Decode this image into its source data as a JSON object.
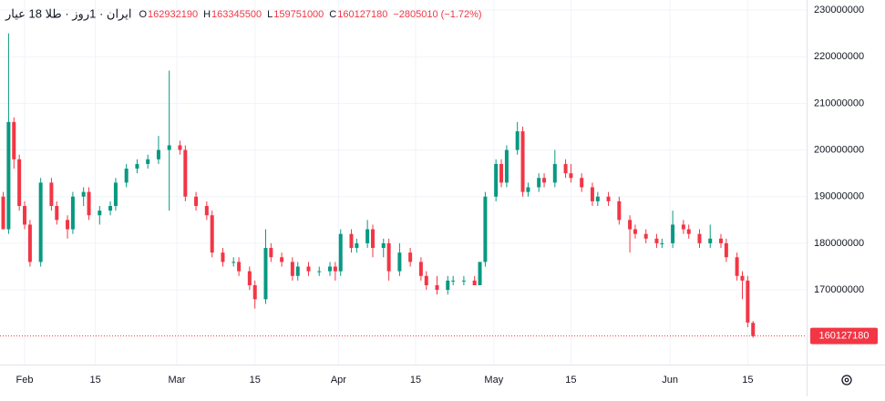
{
  "chart_data": {
    "type": "candlestick",
    "title": "ایران · 1روز · طلا 18 عیار",
    "legend_values": [
      {
        "label": "O",
        "value": 162932190
      },
      {
        "label": "H",
        "value": 163345500
      },
      {
        "label": "L",
        "value": 159751000
      },
      {
        "label": "C",
        "value": 160127180
      }
    ],
    "change": "−2805010 (−1.72%)",
    "up_color": "#089981",
    "down_color": "#f23645",
    "grid": true,
    "x": [
      -4,
      -3,
      -2,
      -1,
      0,
      1,
      3,
      5,
      6,
      8,
      9,
      11,
      12,
      14,
      16,
      17,
      19,
      21,
      23,
      25,
      27,
      29,
      30,
      32,
      34,
      35,
      37,
      39,
      40,
      42,
      43,
      45,
      46,
      48,
      50,
      51,
      53,
      55,
      57,
      58,
      59,
      61,
      62,
      64,
      65,
      67,
      68,
      70,
      72,
      74,
      75,
      77,
      79,
      80,
      82,
      84,
      85,
      86,
      88,
      89,
      90,
      92,
      93,
      94,
      96,
      97,
      99,
      101,
      102,
      104,
      106,
      107,
      109,
      111,
      113,
      114,
      116,
      118,
      119,
      121,
      123,
      124,
      126,
      128,
      130,
      131,
      133,
      134,
      135,
      136
    ],
    "open": [
      190000000.0,
      183000000.0,
      206000000.0,
      198000000.0,
      188000000.0,
      184000000.0,
      176000000.0,
      193000000.0,
      188000000.0,
      185000000.0,
      183000000.0,
      190000000.0,
      191000000.0,
      186000000.0,
      187000000.0,
      188000000.0,
      193000000.0,
      196000000.0,
      197000000.0,
      198000000.0,
      200000000.0,
      201000000.0,
      200000000.0,
      190000000.0,
      188000000.0,
      186000000.0,
      178000000.0,
      176000000.0,
      176000000.0,
      174000000.0,
      171000000.0,
      168000000.0,
      179000000.0,
      177000000.0,
      176000000.0,
      173000000.0,
      175000000.0,
      174000000.0,
      174000000.0,
      175000000.0,
      174000000.0,
      182000000.0,
      179000000.0,
      180000000.0,
      183000000.0,
      179000000.0,
      180000000.0,
      174000000.0,
      178000000.0,
      176000000.0,
      173000000.0,
      171000000.0,
      170000000.0,
      172000000.0,
      172000000.0,
      172000000.0,
      171000000.0,
      176000000.0,
      190000000.0,
      197000000.0,
      193000000.0,
      200000000.0,
      204000000.0,
      191000000.0,
      192000000.0,
      194000000.0,
      193000000.0,
      197000000.0,
      195000000.0,
      194000000.0,
      192000000.0,
      189000000.0,
      190000000.0,
      189000000.0,
      185000000.0,
      183000000.0,
      182000000.0,
      181000000.0,
      180000000.0,
      180000000.0,
      184000000.0,
      183000000.0,
      182000000.0,
      180000000.0,
      181000000.0,
      180000000.0,
      177000000.0,
      173000000.0,
      172000000.0,
      162932190
    ],
    "high": [
      191000000.0,
      225000000.0,
      207000000.0,
      199000000.0,
      189000000.0,
      185000000.0,
      194000000.0,
      194000000.0,
      189000000.0,
      186000000.0,
      191000000.0,
      192000000.0,
      192000000.0,
      188000000.0,
      189000000.0,
      194000000.0,
      197000000.0,
      198000000.0,
      199000000.0,
      203000000.0,
      217000000.0,
      202000000.0,
      201000000.0,
      191000000.0,
      189000000.0,
      187000000.0,
      179000000.0,
      177000000.0,
      177000000.0,
      175000000.0,
      172000000.0,
      183000000.0,
      180000000.0,
      178000000.0,
      177000000.0,
      176000000.0,
      176000000.0,
      175000000.0,
      176000000.0,
      176000000.0,
      183000000.0,
      183000000.0,
      181000000.0,
      185000000.0,
      184000000.0,
      181000000.0,
      181000000.0,
      180000000.0,
      179000000.0,
      177000000.0,
      174000000.0,
      173000000.0,
      173000000.0,
      173000000.0,
      173000000.0,
      173000000.0,
      176000000.0,
      191000000.0,
      198000000.0,
      198000000.0,
      201000000.0,
      206000000.0,
      205000000.0,
      193000000.0,
      195000000.0,
      195000000.0,
      200000000.0,
      198000000.0,
      197000000.0,
      195000000.0,
      193000000.0,
      191000000.0,
      191000000.0,
      190000000.0,
      186000000.0,
      184000000.0,
      183000000.0,
      182000000.0,
      181000000.0,
      187000000.0,
      185000000.0,
      184000000.0,
      183000000.0,
      184000000.0,
      182000000.0,
      181000000.0,
      178000000.0,
      174000000.0,
      173000000.0,
      163345500
    ],
    "low": [
      183000000.0,
      182000000.0,
      196000000.0,
      187000000.0,
      183000000.0,
      175000000.0,
      175000000.0,
      187000000.0,
      184000000.0,
      181000000.0,
      182000000.0,
      188000000.0,
      185000000.0,
      184000000.0,
      186000000.0,
      187000000.0,
      192000000.0,
      195000000.0,
      196000000.0,
      197000000.0,
      187000000.0,
      199000000.0,
      189000000.0,
      187000000.0,
      185000000.0,
      177000000.0,
      175000000.0,
      175000000.0,
      173000000.0,
      170000000.0,
      166000000.0,
      167000000.0,
      176000000.0,
      175000000.0,
      172000000.0,
      172000000.0,
      173000000.0,
      173000000.0,
      173000000.0,
      172000000.0,
      173000000.0,
      178000000.0,
      178000000.0,
      179000000.0,
      177000000.0,
      177000000.0,
      172000000.0,
      173000000.0,
      175000000.0,
      172000000.0,
      170000000.0,
      169000000.0,
      169000000.0,
      171000000.0,
      171000000.0,
      171000000.0,
      171000000.0,
      175000000.0,
      189000000.0,
      192000000.0,
      192000000.0,
      199000000.0,
      190000000.0,
      190000000.0,
      191000000.0,
      192000000.0,
      192000000.0,
      194000000.0,
      193000000.0,
      191000000.0,
      188000000.0,
      188000000.0,
      188000000.0,
      184000000.0,
      178000000.0,
      181000000.0,
      180000000.0,
      179000000.0,
      179000000.0,
      179000000.0,
      182000000.0,
      181000000.0,
      179000000.0,
      179000000.0,
      179000000.0,
      176000000.0,
      172000000.0,
      168000000.0,
      162000000.0,
      159751000
    ],
    "close": [
      183000000.0,
      206000000.0,
      198000000.0,
      188000000.0,
      184000000.0,
      176000000.0,
      193000000.0,
      188000000.0,
      185000000.0,
      183000000.0,
      190000000.0,
      191000000.0,
      186000000.0,
      187000000.0,
      188000000.0,
      193000000.0,
      196000000.0,
      197000000.0,
      198000000.0,
      200000000.0,
      201000000.0,
      200000000.0,
      190000000.0,
      188000000.0,
      186000000.0,
      178000000.0,
      176000000.0,
      176000000.0,
      174000000.0,
      171000000.0,
      168000000.0,
      179000000.0,
      177000000.0,
      176000000.0,
      173000000.0,
      175000000.0,
      174000000.0,
      174000000.0,
      175000000.0,
      174000000.0,
      182000000.0,
      179000000.0,
      180000000.0,
      183000000.0,
      179000000.0,
      180000000.0,
      174000000.0,
      178000000.0,
      176000000.0,
      173000000.0,
      171000000.0,
      170000000.0,
      172000000.0,
      172000000.0,
      172000000.0,
      171000000.0,
      176000000.0,
      190000000.0,
      197000000.0,
      193000000.0,
      200000000.0,
      204000000.0,
      191000000.0,
      192000000.0,
      194000000.0,
      193000000.0,
      197000000.0,
      195000000.0,
      194000000.0,
      192000000.0,
      189000000.0,
      190000000.0,
      189000000.0,
      185000000.0,
      183000000.0,
      182000000.0,
      181000000.0,
      180000000.0,
      180000000.0,
      184000000.0,
      183000000.0,
      182000000.0,
      180000000.0,
      181000000.0,
      180000000.0,
      177000000.0,
      173000000.0,
      172000000.0,
      163000000.0,
      160127180
    ],
    "xlim": [
      -4.6,
      146
    ],
    "xticks": [
      {
        "value": 0,
        "label": "Feb"
      },
      {
        "value": 13.2,
        "label": "15"
      },
      {
        "value": 28.4,
        "label": "Mar"
      },
      {
        "value": 43,
        "label": "15"
      },
      {
        "value": 58.6,
        "label": "Apr"
      },
      {
        "value": 73,
        "label": "15"
      },
      {
        "value": 87.6,
        "label": "May"
      },
      {
        "value": 102,
        "label": "15"
      },
      {
        "value": 120.5,
        "label": "Jun"
      },
      {
        "value": 135,
        "label": "15"
      }
    ],
    "ylim": [
      154000000.0,
      232150000.0
    ],
    "yticks": [
      170000000,
      180000000,
      190000000,
      200000000,
      210000000,
      220000000,
      230000000
    ]
  }
}
